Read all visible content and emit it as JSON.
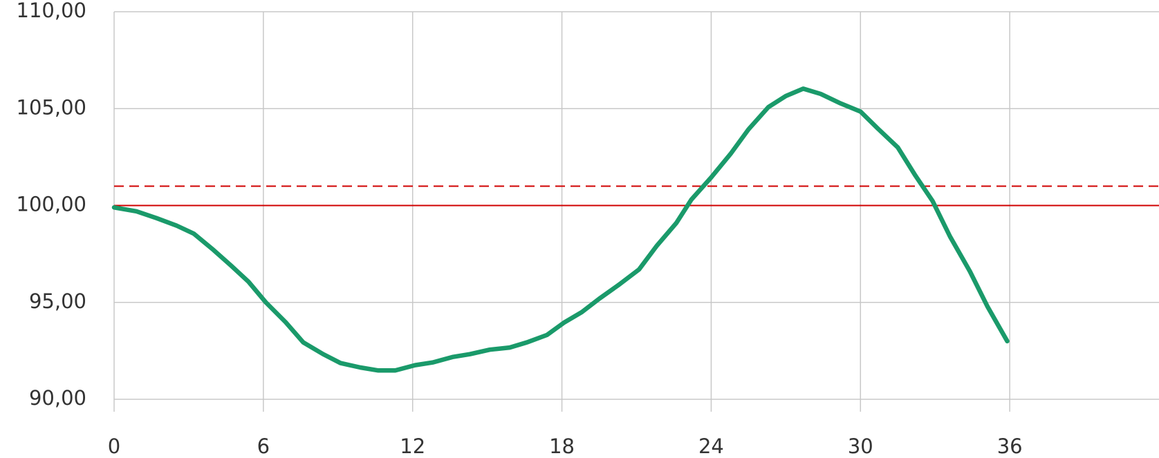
{
  "chart_data": {
    "type": "line",
    "x": [
      0,
      0.9,
      1.7,
      2.5,
      3.2,
      4.0,
      4.7,
      5.4,
      6.1,
      6.9,
      7.6,
      8.4,
      9.1,
      9.9,
      10.6,
      11.3,
      12.1,
      12.8,
      13.6,
      14.3,
      15.1,
      15.9,
      16.6,
      17.4,
      18.1,
      18.8,
      19.5,
      20.3,
      21.1,
      21.8,
      22.6,
      23.2,
      24.0,
      24.8,
      25.5,
      26.3,
      27.0,
      27.7,
      28.4,
      29.2,
      30.0,
      30.7,
      31.5,
      32.2,
      32.9,
      33.6,
      34.4,
      35.1,
      35.9
    ],
    "series": [
      {
        "color": "#1a9a6a",
        "values": [
          99.9,
          99.7,
          99.35,
          98.97,
          98.55,
          97.7,
          96.9,
          96.07,
          95.0,
          93.97,
          92.94,
          92.33,
          91.87,
          91.64,
          91.49,
          91.49,
          91.76,
          91.9,
          92.18,
          92.33,
          92.56,
          92.67,
          92.94,
          93.32,
          93.97,
          94.5,
          95.19,
          95.92,
          96.7,
          97.9,
          99.1,
          100.3,
          101.45,
          102.7,
          103.93,
          105.08,
          105.65,
          106.03,
          105.76,
          105.27,
          104.85,
          103.97,
          103.0,
          101.56,
          100.23,
          98.4,
          96.6,
          94.8,
          93.0
        ]
      }
    ],
    "reference_lines": [
      {
        "value": 100,
        "style": "solid",
        "color": "#d00000"
      },
      {
        "value": 101,
        "style": "dashed",
        "color": "#d00000"
      }
    ],
    "xlim": [
      0,
      42
    ],
    "xticks": [
      0,
      6,
      12,
      18,
      24,
      30,
      36
    ],
    "ylim": [
      90,
      110
    ],
    "yticks": [
      {
        "value": 90,
        "label": "90,00"
      },
      {
        "value": 95,
        "label": "95,00"
      },
      {
        "value": 100,
        "label": "100,00"
      },
      {
        "value": 105,
        "label": "105,00"
      },
      {
        "value": 110,
        "label": "110,00"
      }
    ],
    "grid": true
  }
}
